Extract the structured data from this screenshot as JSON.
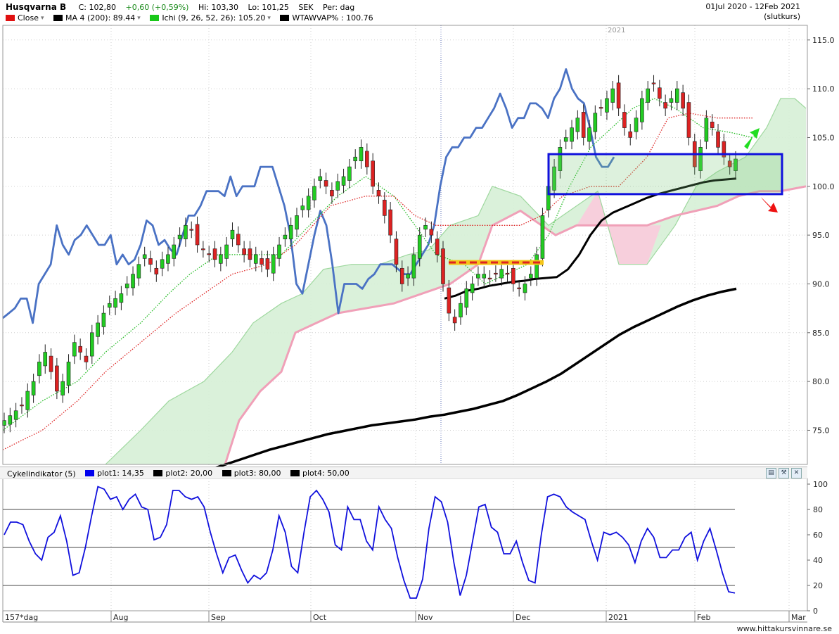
{
  "header": {
    "symbol": "Husqvarna B",
    "close": "C: 102,80",
    "change": "+0,60 (+0,59%)",
    "high": "Hi: 103,30",
    "low": "Lo: 101,25",
    "currency": "SEK",
    "period": "Per: dag",
    "date_range": "01Jul 2020 - 12Feb 2021",
    "price_type": "(slutkurs)",
    "legend": [
      {
        "label": "Close",
        "color": "#e01010"
      },
      {
        "label": "MA 4 (200): 89.44",
        "color": "#000000"
      },
      {
        "label": "Ichi (9, 26, 52, 26): 105.20",
        "color": "#19c819"
      },
      {
        "label": "WTAWVAP% : 100.76",
        "color": "#000000"
      }
    ]
  },
  "indicator": {
    "title": "Cykelindikator (5)",
    "legend": [
      {
        "label": "plot1: 14,35",
        "color": "#0000ee"
      },
      {
        "label": "plot2: 20,00",
        "color": "#000000"
      },
      {
        "label": "plot3: 80,00",
        "color": "#000000"
      },
      {
        "label": "plot4: 50,00",
        "color": "#000000"
      }
    ]
  },
  "footer": {
    "watermark": "www.hittakursvinnare.se"
  },
  "chart_data": {
    "type": "candlestick",
    "y_ticks": [
      "115.0",
      "110.0",
      "105.0",
      "100.0",
      "95.0",
      "90.0",
      "85.0",
      "80.0",
      "75.0"
    ],
    "x_ticks": [
      "157*dag",
      "Aug",
      "Sep",
      "Oct",
      "Nov",
      "Dec",
      "2021",
      "Feb",
      "Mar"
    ],
    "year_marker": "2021",
    "ylim": [
      71.5,
      116.5
    ],
    "indicator_ticks": [
      "100",
      "80",
      "60",
      "40",
      "20",
      "0"
    ],
    "indicator_ylim": [
      0,
      100
    ],
    "indicator_levels": [
      20,
      50,
      80
    ],
    "colors": {
      "up": "#22cc22",
      "down": "#dd2222",
      "cloud_green": "#d6f0d6",
      "cloud_pink": "#f7cfdc",
      "wvap": "#4a72c4",
      "ma200": "#000000",
      "cycle": "#1010dd"
    },
    "wvap_line": [
      86.5,
      87,
      87.5,
      88.5,
      88.5,
      86,
      90,
      91,
      92,
      96,
      94,
      93,
      94.5,
      95,
      96,
      95,
      94,
      94,
      95,
      92,
      93,
      92,
      92.5,
      94,
      96.5,
      96,
      94,
      94.5,
      93.5,
      93,
      95,
      97,
      97,
      98,
      99.5,
      99.5,
      99.5,
      99,
      101,
      99,
      100,
      100,
      100,
      102,
      102,
      102,
      100,
      98,
      95,
      90,
      89,
      92,
      95,
      97.5,
      96,
      92,
      87,
      90,
      90,
      90,
      89.5,
      90.5,
      91,
      92,
      92,
      92,
      91.5,
      91,
      91,
      92,
      93,
      94,
      96,
      100,
      103,
      104,
      104,
      105,
      105,
      106,
      106,
      107,
      108,
      109.5,
      108,
      106,
      107,
      107,
      108.5,
      108.5,
      108,
      107,
      109,
      110,
      112,
      110,
      109,
      108.5,
      106,
      103,
      102,
      102,
      103
    ],
    "ma200_line": [
      71,
      71.5,
      72,
      72.5,
      73,
      73.4,
      73.8,
      74.2,
      74.6,
      74.9,
      75.2,
      75.5,
      75.7,
      75.9,
      76.1,
      76.4,
      76.6,
      76.9,
      77.2,
      77.6,
      78,
      78.6,
      79.3,
      80,
      80.8,
      81.8,
      82.8,
      83.8,
      84.8,
      85.6,
      86.3,
      87,
      87.7,
      88.3,
      88.8,
      89.2,
      89.5
    ],
    "vwap_short": [
      88.5,
      88.8,
      89.3,
      89.5,
      89.8,
      90,
      90.2,
      90.3,
      90.5,
      90.6,
      90.7,
      91.5,
      93,
      95,
      96.5,
      97.3,
      97.8,
      98.3,
      98.8,
      99.2,
      99.5,
      99.8,
      100.1,
      100.4,
      100.6,
      100.7,
      100.8
    ],
    "highlight_box": {
      "y1": 99.2,
      "y2": 103.3
    },
    "support_line": 92.2,
    "cycle_values": [
      60,
      70,
      70,
      68,
      55,
      45,
      40,
      58,
      62,
      75,
      55,
      28,
      30,
      50,
      75,
      98,
      96,
      88,
      90,
      80,
      88,
      92,
      82,
      80,
      56,
      58,
      68,
      95,
      95,
      90,
      88,
      90,
      82,
      62,
      45,
      30,
      42,
      44,
      32,
      22,
      28,
      25,
      30,
      48,
      75,
      62,
      35,
      30,
      62,
      90,
      95,
      88,
      78,
      52,
      48,
      82,
      72,
      72,
      55,
      48,
      82,
      72,
      65,
      42,
      24,
      10,
      10,
      25,
      65,
      90,
      86,
      70,
      38,
      12,
      28,
      55,
      82,
      84,
      66,
      62,
      45,
      45,
      55,
      38,
      24,
      22,
      60,
      90,
      92,
      90,
      82,
      78,
      75,
      72,
      55,
      40,
      62,
      60,
      62,
      58,
      52,
      38,
      55,
      65,
      58,
      42,
      42,
      48,
      48,
      58,
      62,
      40,
      55,
      65,
      48,
      30,
      15,
      14
    ]
  }
}
